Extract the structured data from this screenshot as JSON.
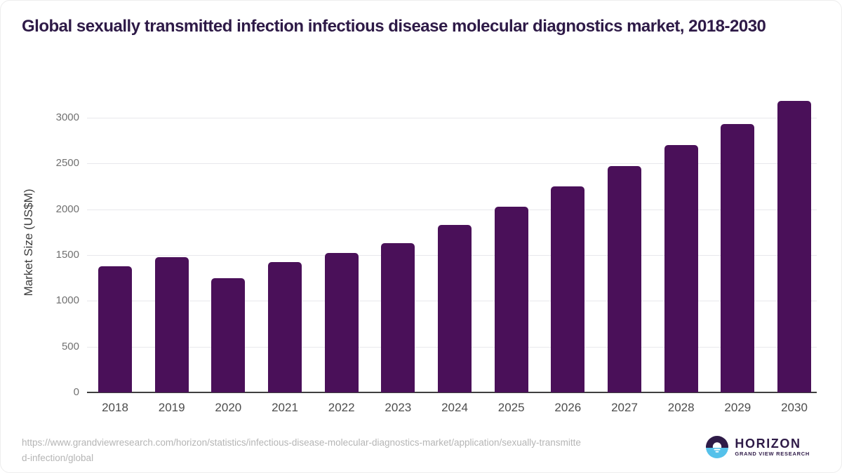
{
  "title": "Global sexually transmitted infection infectious disease molecular diagnostics market, 2018-2030",
  "source": {
    "url": "https://www.grandviewresearch.com/horizon/statistics/infectious-disease-molecular-diagnostics-market/application/sexually-transmitted-infection/global"
  },
  "logo": {
    "wordmark": "HORIZON",
    "subtitle": "GRAND VIEW RESEARCH",
    "icon": "horizon-sunrise-circle-icon",
    "purple": "#2e1a47",
    "blue": "#55c1ea"
  },
  "colors": {
    "title_text": "#2e1a47",
    "bar": "#4a1059",
    "gridline": "#e8e8ec",
    "axis_line": "#3f3f3f",
    "y_tick_label": "#717171",
    "x_tick_label": "#4d4d4d",
    "y_axis_title": "#3d3d3d",
    "source_url_text": "#b5b5b5",
    "background": "#ffffff"
  },
  "chart_data": {
    "type": "bar",
    "title": "Global sexually transmitted infection infectious disease molecular diagnostics market, 2018-2030",
    "categories": [
      "2018",
      "2019",
      "2020",
      "2021",
      "2022",
      "2023",
      "2024",
      "2025",
      "2026",
      "2027",
      "2028",
      "2029",
      "2030"
    ],
    "values": [
      1380,
      1480,
      1250,
      1420,
      1520,
      1630,
      1830,
      2030,
      2250,
      2470,
      2700,
      2930,
      3180
    ],
    "xlabel": "",
    "ylabel": "Market Size (US$M)",
    "ylim": [
      0,
      3250
    ],
    "yticks": [
      0,
      500,
      1000,
      1500,
      2000,
      2500,
      3000
    ],
    "grid": true,
    "legend": false,
    "bar_color": "#4a1059"
  }
}
